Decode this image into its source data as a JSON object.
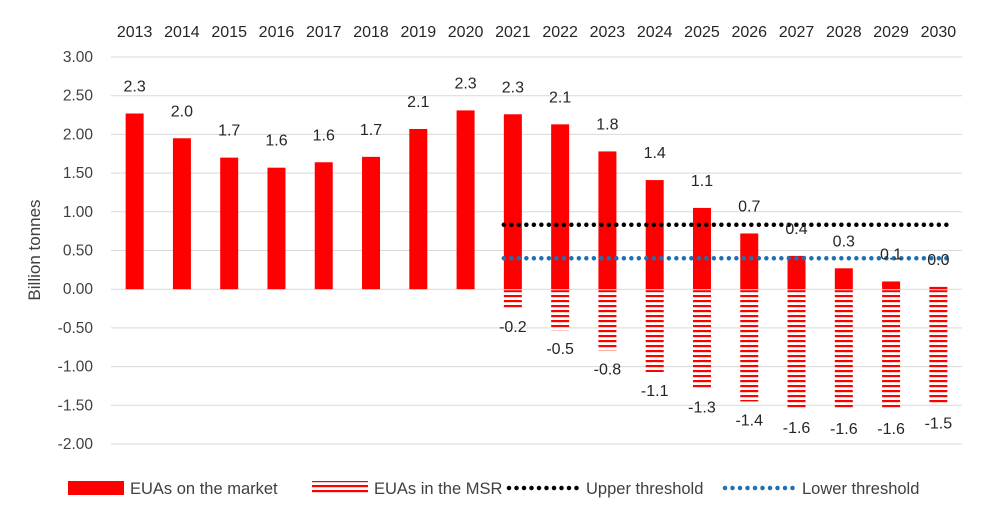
{
  "chart_data": {
    "type": "bar",
    "title": "",
    "xlabel": "",
    "ylabel": "Billion tonnes",
    "ylim": [
      -2.0,
      3.0
    ],
    "yticks": [
      3.0,
      2.5,
      2.0,
      1.5,
      1.0,
      0.5,
      0.0,
      -0.5,
      -1.0,
      -1.5,
      -2.0
    ],
    "ytick_labels": [
      "3.00",
      "2.50",
      "2.00",
      "1.50",
      "1.00",
      "0.50",
      "0.00",
      "-0.50",
      "-1.00",
      "-1.50",
      "-2.00"
    ],
    "categories": [
      "2013",
      "2014",
      "2015",
      "2016",
      "2017",
      "2018",
      "2019",
      "2020",
      "2021",
      "2022",
      "2023",
      "2024",
      "2025",
      "2026",
      "2027",
      "2028",
      "2029",
      "2030"
    ],
    "grid": true,
    "legend_position": "bottom",
    "series": [
      {
        "name": "EUAs on the market",
        "style": "solid",
        "color": "#ff0000",
        "values": [
          2.27,
          1.95,
          1.7,
          1.57,
          1.64,
          1.71,
          2.07,
          2.31,
          2.26,
          2.13,
          1.78,
          1.41,
          1.05,
          0.72,
          0.43,
          0.27,
          0.1,
          0.03
        ],
        "labels": [
          "2.3",
          "2.0",
          "1.7",
          "1.6",
          "1.6",
          "1.7",
          "2.1",
          "2.3",
          "2.3",
          "2.1",
          "1.8",
          "1.4",
          "1.1",
          "0.7",
          "0.4",
          "0.3",
          "0.1",
          "0.0"
        ]
      },
      {
        "name": "EUAs in the MSR",
        "style": "horizontal-stripes",
        "color": "#ff0000",
        "values": [
          null,
          null,
          null,
          null,
          null,
          null,
          null,
          null,
          -0.24,
          -0.53,
          -0.79,
          -1.07,
          -1.28,
          -1.45,
          -1.55,
          -1.56,
          -1.56,
          -1.49
        ],
        "labels": [
          "",
          "",
          "",
          "",
          "",
          "",
          "",
          "",
          "-0.2",
          "-0.5",
          "-0.8",
          "-1.1",
          "-1.3",
          "-1.4",
          "-1.6",
          "-1.6",
          "-1.6",
          "-1.5"
        ]
      },
      {
        "name": "Upper threshold",
        "type": "line",
        "style": "dotted",
        "color": "#000000",
        "x_range": [
          "2021",
          "2030"
        ],
        "value": 0.833
      },
      {
        "name": "Lower threshold",
        "type": "line",
        "style": "dotted",
        "color": "#1f6fb5",
        "x_range": [
          "2021",
          "2030"
        ],
        "value": 0.4
      }
    ]
  }
}
